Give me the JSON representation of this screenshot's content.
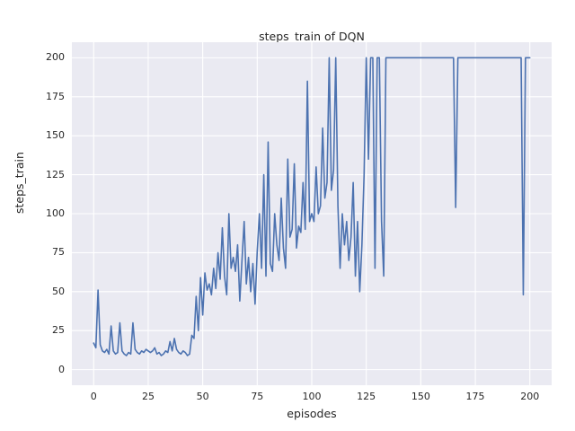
{
  "chart_data": {
    "type": "line",
    "title": "steps_train of DQN",
    "xlabel": "episodes",
    "ylabel": "steps_train",
    "xlim": [
      -10,
      210
    ],
    "ylim": [
      -10,
      210
    ],
    "xticks": [
      0,
      25,
      50,
      75,
      100,
      125,
      150,
      175,
      200
    ],
    "yticks": [
      0,
      25,
      50,
      75,
      100,
      125,
      150,
      175,
      200
    ],
    "grid": true,
    "legend": "none",
    "style": {
      "plot_bg": "#eaeaf2",
      "grid_color": "#ffffff",
      "line_color": "#4c72b0",
      "text_color": "#262626",
      "line_width": 1.6
    },
    "x_note": "x value = episode index, 0 through 200",
    "series": [
      {
        "name": "steps_train",
        "y": [
          17,
          14,
          51,
          16,
          12,
          11,
          13,
          10,
          28,
          12,
          10,
          11,
          30,
          12,
          10,
          9,
          11,
          10,
          30,
          13,
          11,
          10,
          12,
          11,
          13,
          12,
          11,
          12,
          14,
          10,
          11,
          9,
          10,
          12,
          11,
          18,
          12,
          20,
          13,
          11,
          10,
          12,
          11,
          9,
          10,
          22,
          20,
          47,
          25,
          59,
          35,
          62,
          51,
          55,
          48,
          65,
          52,
          75,
          58,
          91,
          60,
          48,
          100,
          65,
          72,
          63,
          80,
          44,
          70,
          95,
          55,
          72,
          50,
          68,
          42,
          76,
          100,
          65,
          125,
          60,
          146,
          68,
          63,
          100,
          80,
          70,
          110,
          78,
          65,
          135,
          85,
          90,
          132,
          78,
          92,
          88,
          120,
          90,
          185,
          95,
          100,
          95,
          130,
          100,
          105,
          155,
          110,
          120,
          200,
          115,
          128,
          200,
          105,
          65,
          100,
          80,
          95,
          70,
          85,
          120,
          60,
          95,
          50,
          80,
          125,
          200,
          135,
          200,
          200,
          65,
          200,
          200,
          95,
          60,
          200,
          200,
          200,
          200,
          200,
          200,
          200,
          200,
          200,
          200,
          200,
          200,
          200,
          200,
          200,
          200,
          200,
          200,
          200,
          200,
          200,
          200,
          200,
          200,
          200,
          200,
          200,
          200,
          200,
          200,
          200,
          200,
          104,
          200,
          200,
          200,
          200,
          200,
          200,
          200,
          200,
          200,
          200,
          200,
          200,
          200,
          200,
          200,
          200,
          200,
          200,
          200,
          200,
          200,
          200,
          200,
          200,
          200,
          200,
          200,
          200,
          200,
          200,
          48,
          200,
          200,
          200
        ]
      }
    ]
  }
}
